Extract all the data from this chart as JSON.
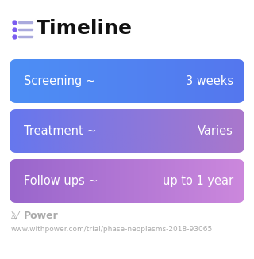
{
  "title": "Timeline",
  "title_icon_color": "#7b5cf0",
  "title_fontsize": 18,
  "title_fontweight": "bold",
  "background_color": "#ffffff",
  "rows": [
    {
      "label": "Screening ~",
      "value": "3 weeks",
      "color_left": "#4d8ff5",
      "color_right": "#5577ee"
    },
    {
      "label": "Treatment ~",
      "value": "Varies",
      "color_left": "#6677ee",
      "color_right": "#aa77cc"
    },
    {
      "label": "Follow ups ~",
      "value": "up to 1 year",
      "color_left": "#9966cc",
      "color_right": "#cc88dd"
    }
  ],
  "text_color": "#ffffff",
  "label_fontsize": 10.5,
  "value_fontsize": 10.5,
  "footer_text": "Power",
  "footer_url": "www.withpower.com/trial/phase-neoplasms-2018-93065",
  "footer_color": "#aaaaaa",
  "footer_fontsize": 6.5,
  "footer_power_fontsize": 9
}
